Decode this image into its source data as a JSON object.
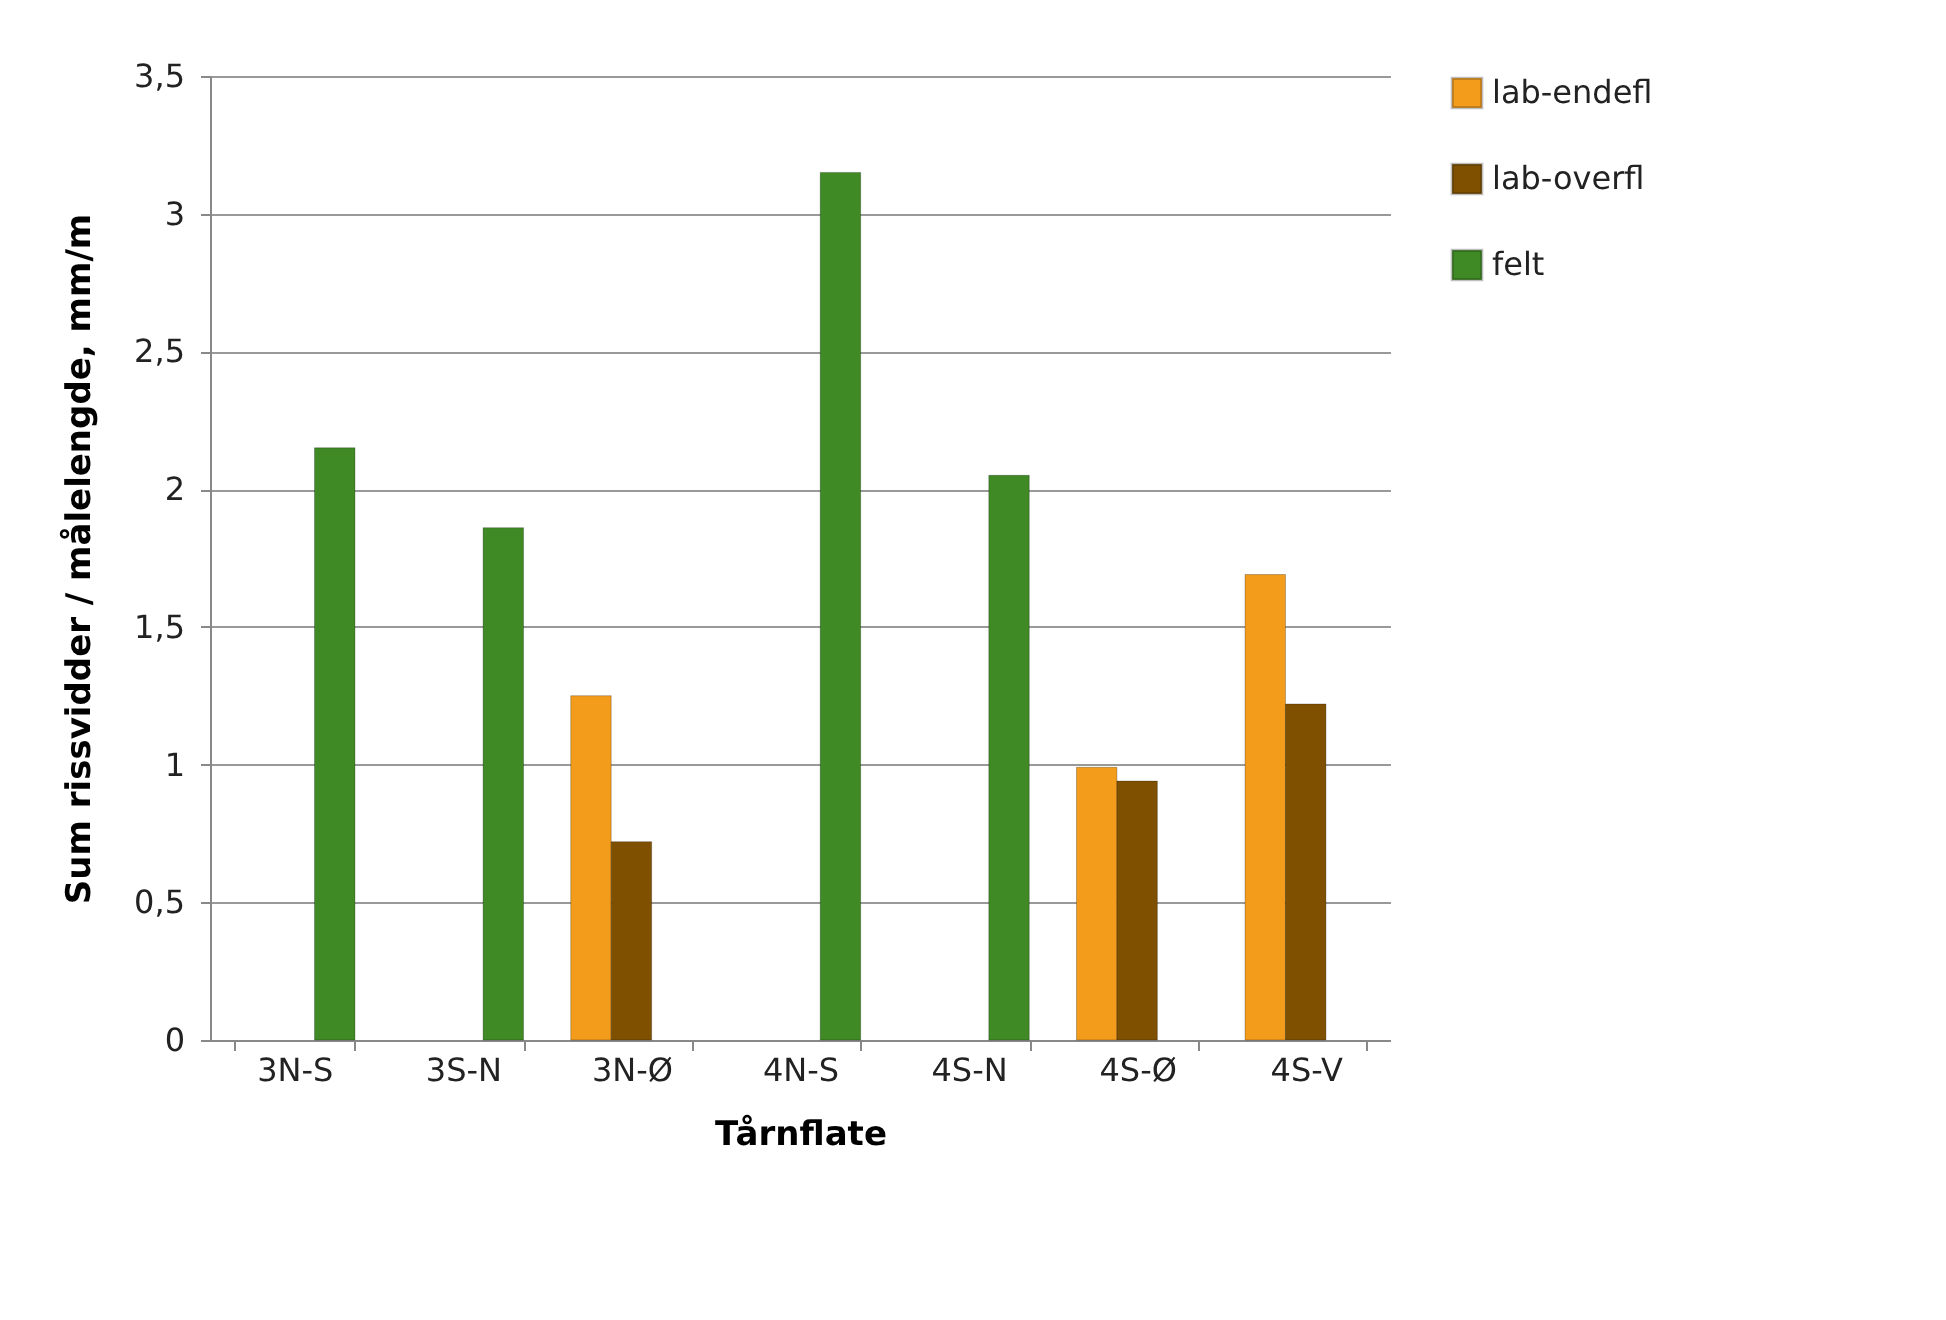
{
  "chart_data": {
    "type": "bar",
    "xlabel": "Tårnflate",
    "ylabel": "Sum rissvidder / målelengde, mm/m",
    "categories": [
      "3N-S",
      "3S-N",
      "3N-Ø",
      "4N-S",
      "4S-N",
      "4S-Ø",
      "4S-V"
    ],
    "series": [
      {
        "name": "lab-endefl",
        "color": "#f39c1b",
        "values": [
          null,
          null,
          1.25,
          null,
          null,
          0.99,
          1.69
        ]
      },
      {
        "name": "lab-overfl",
        "color": "#7f5000",
        "values": [
          null,
          null,
          0.72,
          null,
          null,
          0.94,
          1.22
        ]
      },
      {
        "name": "felt",
        "color": "#3f8a25",
        "values": [
          2.15,
          1.86,
          null,
          3.15,
          2.05,
          null,
          null
        ]
      }
    ],
    "ylim": [
      0,
      3.5
    ],
    "yticks": [
      0,
      {
        "value": 0.5,
        "label": "0,5"
      },
      1,
      {
        "value": 1.5,
        "label": "1,5"
      },
      2,
      {
        "value": 2.5,
        "label": "2,5"
      },
      3,
      {
        "value": 3.5,
        "label": "3,5"
      }
    ],
    "grid": "y",
    "legend": "right"
  }
}
